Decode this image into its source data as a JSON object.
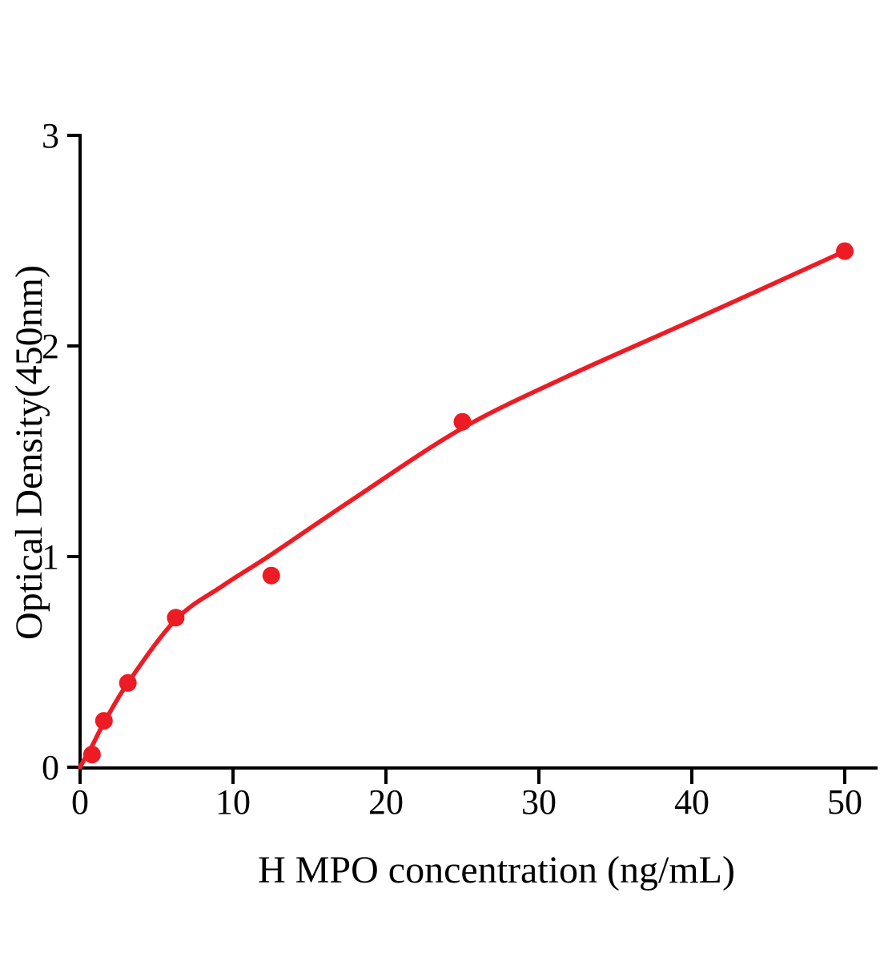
{
  "chart_data": {
    "type": "scatter",
    "title": "",
    "xlabel": "H MPO concentration (ng/mL)",
    "ylabel": "Optical Density(450nm)",
    "xlim": [
      0,
      52.2
    ],
    "ylim": [
      0,
      3
    ],
    "x_ticks": [
      0,
      10,
      20,
      30,
      40,
      50
    ],
    "y_ticks": [
      0,
      1,
      2,
      3
    ],
    "grid": false,
    "legend": "none",
    "series": [
      {
        "name": "standard-points",
        "type": "scatter",
        "color": "#ED1C24",
        "x": [
          0.78,
          1.56,
          3.125,
          6.25,
          12.5,
          25,
          50
        ],
        "y": [
          0.06,
          0.22,
          0.4,
          0.71,
          0.91,
          1.64,
          2.45
        ]
      },
      {
        "name": "fitted-curve",
        "type": "line",
        "color": "#ED1C24",
        "x": [
          0,
          0.3,
          0.78,
          1.56,
          3.125,
          6.25,
          9.3,
          12.5,
          18,
          25,
          32,
          40,
          50
        ],
        "y": [
          0,
          0.04,
          0.1,
          0.21,
          0.4,
          0.7,
          0.86,
          1.01,
          1.28,
          1.61,
          1.86,
          2.12,
          2.45
        ]
      }
    ]
  },
  "colors": {
    "curve": "#ED1C24",
    "points": "#ED1C24",
    "axis": "#000000",
    "background": "#FFFFFF"
  }
}
